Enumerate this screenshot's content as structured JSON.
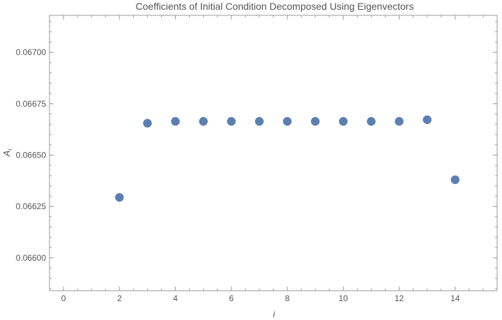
{
  "chart_data": {
    "type": "scatter",
    "title": "Coefficients of Initial Condition Decomposed Using Eigenvectors",
    "xlabel": "i",
    "ylabel": "A",
    "ylabel_sub": "i",
    "xlim": [
      -0.5,
      15.5
    ],
    "ylim": [
      0.06584,
      0.06718
    ],
    "x_ticks": [
      0,
      2,
      4,
      6,
      8,
      10,
      12,
      14
    ],
    "x_tick_labels": [
      "0",
      "2",
      "4",
      "6",
      "8",
      "10",
      "12",
      "14"
    ],
    "y_ticks": [
      0.066,
      0.06625,
      0.0665,
      0.06675,
      0.067
    ],
    "y_tick_labels": [
      "0.06600",
      "0.06625",
      "0.06650",
      "0.06675",
      "0.06700"
    ],
    "grid": false,
    "point_color": "#5b7fb5",
    "series": [
      {
        "x": [
          2,
          3,
          4,
          5,
          6,
          7,
          8,
          9,
          10,
          11,
          12,
          13,
          14
        ],
        "y": [
          0.066294,
          0.066655,
          0.066664,
          0.066664,
          0.066664,
          0.066664,
          0.066664,
          0.066664,
          0.066664,
          0.066664,
          0.066664,
          0.066672,
          0.06638
        ]
      }
    ]
  }
}
